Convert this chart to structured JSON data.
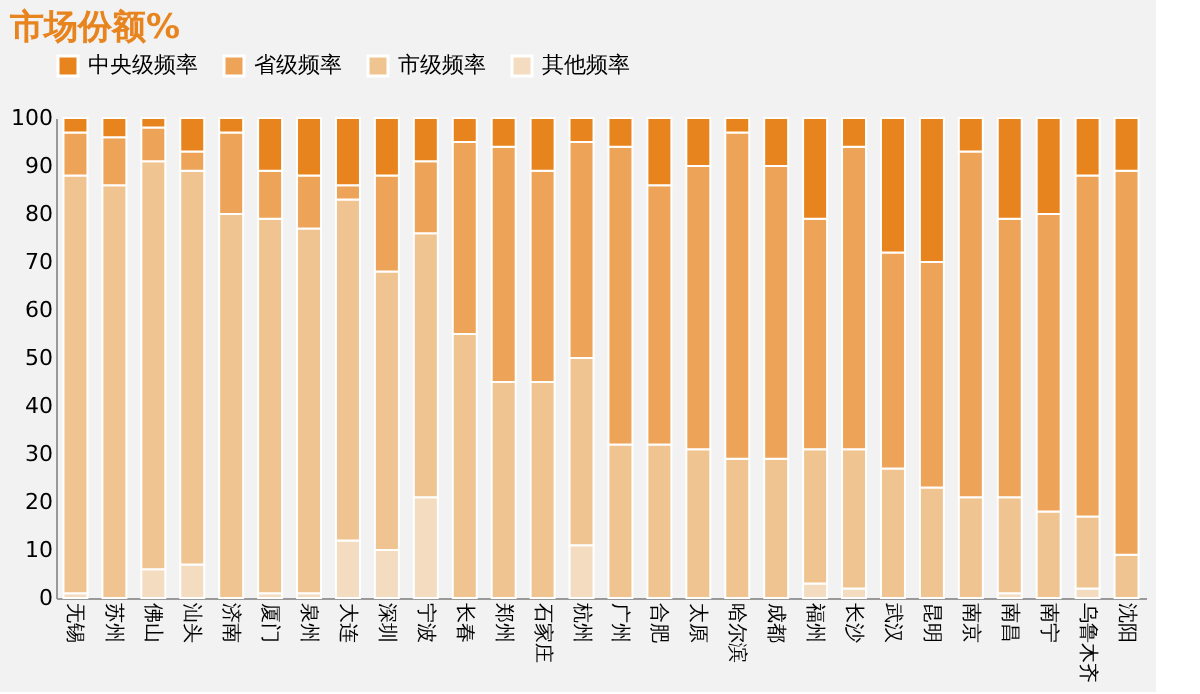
{
  "chart_data": {
    "type": "bar",
    "title": "市场份额%",
    "stacked": true,
    "legend": "top",
    "grid": false,
    "categories": [
      "无锡",
      "苏州",
      "佛山",
      "汕头",
      "济南",
      "厦门",
      "泉州",
      "大连",
      "深圳",
      "宁波",
      "长春",
      "郑州",
      "石家庄",
      "杭州",
      "广州",
      "合肥",
      "太原",
      "哈尔滨",
      "成都",
      "福州",
      "长沙",
      "武汉",
      "昆明",
      "南京",
      "南昌",
      "南宁",
      "乌鲁木齐",
      "沈阳"
    ],
    "ylim": [
      0,
      100
    ],
    "yticks": [
      0,
      10,
      20,
      30,
      40,
      50,
      60,
      70,
      80,
      90,
      100
    ],
    "series": [
      {
        "name": "其他频率",
        "color": "#f3dcc0",
        "values": [
          1,
          0,
          6,
          7,
          0,
          1,
          1,
          12,
          10,
          21,
          0,
          0,
          0,
          11,
          0,
          0,
          0,
          0,
          0,
          3,
          2,
          0,
          0,
          0,
          1,
          0,
          2,
          0
        ]
      },
      {
        "name": "市级频率",
        "color": "#f0c490",
        "values": [
          87,
          86,
          85,
          82,
          80,
          78,
          76,
          71,
          58,
          55,
          55,
          45,
          45,
          39,
          32,
          32,
          31,
          29,
          29,
          28,
          29,
          27,
          23,
          21,
          20,
          18,
          15,
          9
        ]
      },
      {
        "name": "省级频率",
        "color": "#eda458",
        "values": [
          9,
          10,
          7,
          4,
          17,
          10,
          11,
          3,
          20,
          15,
          40,
          49,
          44,
          45,
          62,
          54,
          59,
          68,
          61,
          48,
          63,
          45,
          47,
          72,
          58,
          62,
          71,
          80
        ]
      },
      {
        "name": "中央级频率",
        "color": "#e8841e",
        "values": [
          3,
          4,
          2,
          7,
          3,
          11,
          12,
          14,
          12,
          9,
          5,
          6,
          11,
          5,
          6,
          14,
          10,
          3,
          10,
          21,
          6,
          28,
          30,
          7,
          21,
          20,
          12,
          11
        ]
      }
    ]
  }
}
